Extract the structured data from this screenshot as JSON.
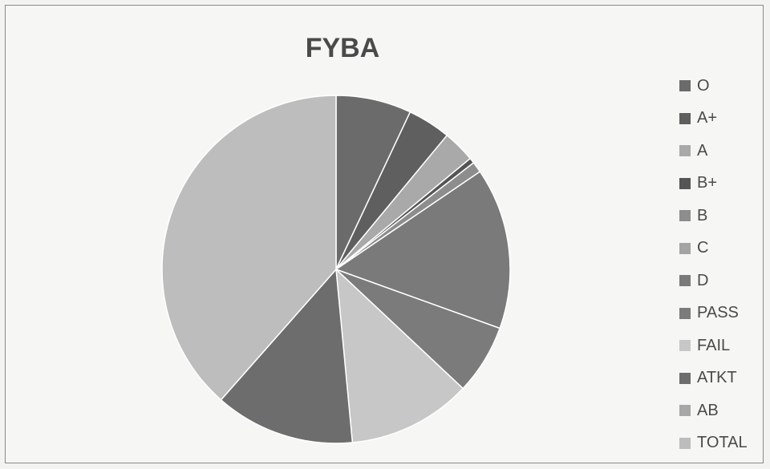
{
  "chart_data": {
    "type": "pie",
    "title": "FYBA",
    "legend_position": "right",
    "categories": [
      "O",
      "A+",
      "A",
      "B+",
      "B",
      "C",
      "D",
      "PASS",
      "FAIL",
      "ATKT",
      "AB",
      "TOTAL"
    ],
    "values": [
      7,
      4,
      3,
      0.5,
      1,
      0,
      15,
      6.5,
      11.5,
      13,
      0,
      38.5
    ],
    "colors": [
      "#6b6b6b",
      "#5f5f5f",
      "#a9a9a9",
      "#555555",
      "#8d8d8d",
      "#a4a4a4",
      "#7a7a7a",
      "#7b7b7b",
      "#c7c7c7",
      "#6d6d6d",
      "#a7a7a7",
      "#bdbdbd"
    ]
  }
}
